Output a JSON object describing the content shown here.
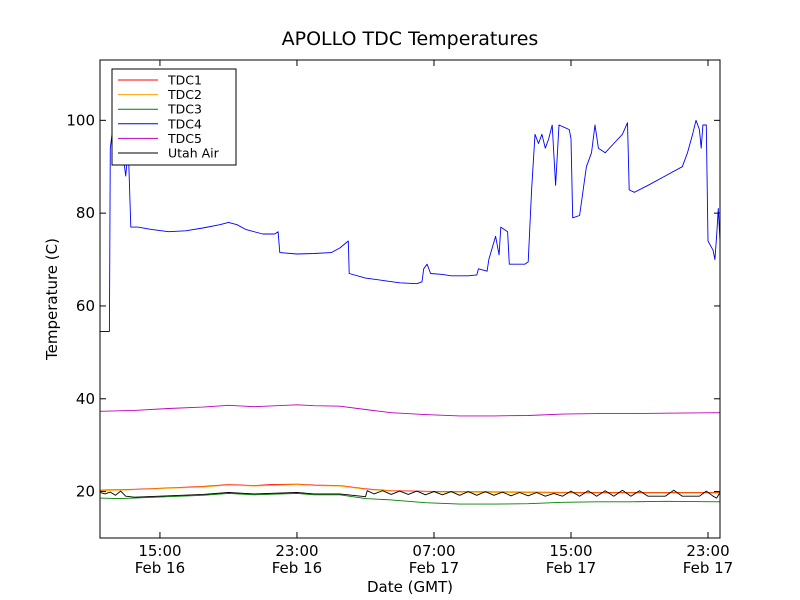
{
  "chart_data": {
    "type": "line",
    "title": "APOLLO TDC Temperatures",
    "xlabel": "Date (GMT)",
    "ylabel": "Temperature (C)",
    "x_unit": "hours since Feb 16 10:30 GMT",
    "xlim": [
      0,
      36.2
    ],
    "ylim": [
      10,
      113
    ],
    "yticks": [
      20,
      40,
      60,
      80,
      100
    ],
    "xticks": [
      {
        "x": 3.5,
        "time": "15:00",
        "date": "Feb 16"
      },
      {
        "x": 11.5,
        "time": "23:00",
        "date": "Feb 16"
      },
      {
        "x": 19.5,
        "time": "07:00",
        "date": "Feb 17"
      },
      {
        "x": 27.5,
        "time": "15:00",
        "date": "Feb 17"
      },
      {
        "x": 35.5,
        "time": "23:00",
        "date": "Feb 17"
      }
    ],
    "legend_position": "top-left",
    "series": [
      {
        "name": "TDC1",
        "color": "#ff0000",
        "points": [
          [
            0,
            20.3
          ],
          [
            2,
            20.5
          ],
          [
            4,
            20.8
          ],
          [
            6,
            21.1
          ],
          [
            7.5,
            21.5
          ],
          [
            9,
            21.3
          ],
          [
            10,
            21.5
          ],
          [
            11.5,
            21.6
          ],
          [
            12.5,
            21.4
          ],
          [
            14,
            21.3
          ],
          [
            15.5,
            20.6
          ],
          [
            17,
            20.2
          ],
          [
            20,
            20.0
          ],
          [
            24,
            19.9
          ],
          [
            28,
            19.8
          ],
          [
            32,
            19.8
          ],
          [
            36.2,
            19.8
          ]
        ]
      },
      {
        "name": "TDC2",
        "color": "#ffa500",
        "points": [
          [
            0,
            20.2
          ],
          [
            2,
            20.4
          ],
          [
            4,
            20.7
          ],
          [
            6,
            21.0
          ],
          [
            7.5,
            21.4
          ],
          [
            9,
            21.2
          ],
          [
            11.5,
            21.5
          ],
          [
            12.5,
            21.3
          ],
          [
            14,
            21.2
          ],
          [
            15.5,
            20.5
          ],
          [
            17,
            20.1
          ],
          [
            20,
            19.9
          ],
          [
            24,
            19.8
          ],
          [
            28,
            19.7
          ],
          [
            32,
            19.7
          ],
          [
            36.2,
            19.7
          ]
        ]
      },
      {
        "name": "TDC3",
        "color": "#008000",
        "points": [
          [
            0,
            18.6
          ],
          [
            1,
            18.5
          ],
          [
            2,
            18.6
          ],
          [
            4,
            18.9
          ],
          [
            6,
            19.2
          ],
          [
            7.5,
            19.6
          ],
          [
            9,
            19.3
          ],
          [
            11.5,
            19.6
          ],
          [
            12.5,
            19.3
          ],
          [
            14,
            19.3
          ],
          [
            15.5,
            18.5
          ],
          [
            17,
            18.2
          ],
          [
            19,
            17.6
          ],
          [
            21,
            17.3
          ],
          [
            23,
            17.3
          ],
          [
            25,
            17.4
          ],
          [
            27,
            17.7
          ],
          [
            29,
            17.8
          ],
          [
            31,
            17.8
          ],
          [
            33,
            17.9
          ],
          [
            36.2,
            17.8
          ]
        ]
      },
      {
        "name": "TDC4",
        "color": "#0000ff",
        "points": [
          [
            0,
            54.5
          ],
          [
            0.55,
            54.5
          ],
          [
            0.6,
            94
          ],
          [
            0.7,
            97
          ],
          [
            0.85,
            92
          ],
          [
            1,
            95
          ],
          [
            1.3,
            94
          ],
          [
            1.5,
            88
          ],
          [
            1.65,
            94
          ],
          [
            1.8,
            77
          ],
          [
            2.2,
            77
          ],
          [
            3,
            76.5
          ],
          [
            4,
            76
          ],
          [
            5,
            76.2
          ],
          [
            6,
            76.8
          ],
          [
            7,
            77.5
          ],
          [
            7.5,
            78
          ],
          [
            8,
            77.5
          ],
          [
            8.5,
            76.5
          ],
          [
            9.5,
            75.5
          ],
          [
            10.2,
            75.5
          ],
          [
            10.4,
            76
          ],
          [
            10.5,
            71.5
          ],
          [
            11.5,
            71.2
          ],
          [
            12.5,
            71.3
          ],
          [
            13.5,
            71.5
          ],
          [
            14,
            72.5
          ],
          [
            14.5,
            74
          ],
          [
            14.55,
            67
          ],
          [
            15.5,
            66
          ],
          [
            16.5,
            65.5
          ],
          [
            17.5,
            65
          ],
          [
            18.5,
            64.8
          ],
          [
            18.8,
            65.2
          ],
          [
            18.9,
            68
          ],
          [
            19.1,
            69
          ],
          [
            19.3,
            67
          ],
          [
            20,
            66.8
          ],
          [
            20.5,
            66.5
          ],
          [
            21.5,
            66.5
          ],
          [
            22,
            66.7
          ],
          [
            22.1,
            68
          ],
          [
            22.6,
            67.5
          ],
          [
            22.7,
            70
          ],
          [
            23.1,
            75
          ],
          [
            23.3,
            71
          ],
          [
            23.4,
            77
          ],
          [
            23.8,
            76
          ],
          [
            23.9,
            69
          ],
          [
            24.8,
            69
          ],
          [
            25,
            69.5
          ],
          [
            25.2,
            85
          ],
          [
            25.4,
            97
          ],
          [
            25.6,
            95
          ],
          [
            25.8,
            97
          ],
          [
            26,
            94
          ],
          [
            26.2,
            96
          ],
          [
            26.4,
            99
          ],
          [
            26.6,
            86
          ],
          [
            26.8,
            99
          ],
          [
            27.4,
            98
          ],
          [
            27.5,
            96
          ],
          [
            27.6,
            79
          ],
          [
            28,
            79.5
          ],
          [
            28.4,
            90
          ],
          [
            28.7,
            93
          ],
          [
            28.9,
            99
          ],
          [
            29.1,
            94
          ],
          [
            29.5,
            93
          ],
          [
            30,
            95
          ],
          [
            30.5,
            97
          ],
          [
            30.8,
            99.5
          ],
          [
            30.9,
            85
          ],
          [
            31.2,
            84.5
          ],
          [
            32,
            86
          ],
          [
            33,
            88
          ],
          [
            34,
            90
          ],
          [
            34.3,
            93
          ],
          [
            34.6,
            97
          ],
          [
            34.8,
            100
          ],
          [
            35,
            98
          ],
          [
            35.1,
            94
          ],
          [
            35.2,
            99
          ],
          [
            35.4,
            99
          ],
          [
            35.5,
            74
          ],
          [
            35.8,
            72
          ],
          [
            35.9,
            70
          ],
          [
            36,
            75
          ],
          [
            36.1,
            81
          ],
          [
            36.2,
            74
          ]
        ]
      },
      {
        "name": "TDC5",
        "color": "#bf00bf",
        "points": [
          [
            0,
            37.3
          ],
          [
            2,
            37.5
          ],
          [
            4,
            37.9
          ],
          [
            6,
            38.2
          ],
          [
            7.5,
            38.6
          ],
          [
            9,
            38.3
          ],
          [
            11.5,
            38.7
          ],
          [
            12.5,
            38.5
          ],
          [
            14,
            38.4
          ],
          [
            15.5,
            37.7
          ],
          [
            17,
            37.0
          ],
          [
            19,
            36.6
          ],
          [
            21,
            36.3
          ],
          [
            23,
            36.3
          ],
          [
            25,
            36.4
          ],
          [
            27,
            36.7
          ],
          [
            29,
            36.8
          ],
          [
            31,
            36.8
          ],
          [
            33,
            36.9
          ],
          [
            36.2,
            37.0
          ]
        ]
      },
      {
        "name": "Utah Air",
        "color": "#000000",
        "points": [
          [
            0,
            19.8
          ],
          [
            0.3,
            19.5
          ],
          [
            0.6,
            19.9
          ],
          [
            0.9,
            19.2
          ],
          [
            1.2,
            20.1
          ],
          [
            1.5,
            19.0
          ],
          [
            2,
            18.8
          ],
          [
            4,
            19.1
          ],
          [
            6,
            19.4
          ],
          [
            7.5,
            19.8
          ],
          [
            9,
            19.5
          ],
          [
            11.5,
            19.8
          ],
          [
            12.5,
            19.5
          ],
          [
            14,
            19.5
          ],
          [
            15.5,
            18.9
          ],
          [
            15.6,
            20.2
          ],
          [
            16,
            19.5
          ],
          [
            16.5,
            20.2
          ],
          [
            17,
            19.4
          ],
          [
            17.5,
            20.1
          ],
          [
            18,
            19.4
          ],
          [
            18.5,
            20.1
          ],
          [
            19,
            19.3
          ],
          [
            19.5,
            20.0
          ],
          [
            20,
            19.3
          ],
          [
            20.5,
            20.0
          ],
          [
            21,
            19.2
          ],
          [
            21.5,
            20.0
          ],
          [
            22,
            19.2
          ],
          [
            22.5,
            20.0
          ],
          [
            23,
            19.2
          ],
          [
            23.5,
            19.9
          ],
          [
            24,
            19.1
          ],
          [
            24.5,
            19.8
          ],
          [
            25,
            19.1
          ],
          [
            25.5,
            19.8
          ],
          [
            26,
            19.0
          ],
          [
            26.5,
            19.6
          ],
          [
            27,
            19.0
          ],
          [
            27.5,
            20.1
          ],
          [
            28,
            19.0
          ],
          [
            28.5,
            20.2
          ],
          [
            29,
            19.0
          ],
          [
            29.5,
            20.2
          ],
          [
            30,
            19.0
          ],
          [
            30.5,
            20.3
          ],
          [
            31,
            19.0
          ],
          [
            31.5,
            20.2
          ],
          [
            32,
            19.0
          ],
          [
            33,
            19.0
          ],
          [
            33.5,
            20.3
          ],
          [
            34,
            19.0
          ],
          [
            35,
            19.0
          ],
          [
            35.4,
            20.1
          ],
          [
            35.8,
            19.0
          ],
          [
            36,
            18.6
          ],
          [
            36.2,
            19.8
          ]
        ]
      }
    ]
  }
}
